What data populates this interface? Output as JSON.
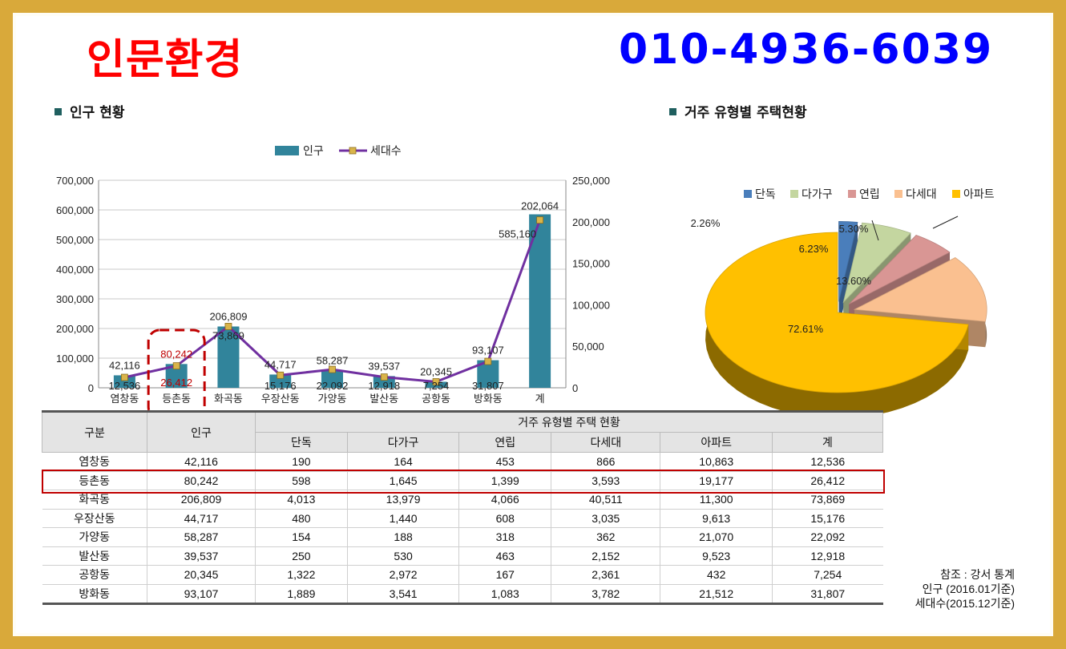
{
  "header": {
    "title": "인문환경",
    "phone": "010-4936-6039"
  },
  "left_section_title": "인구 현황",
  "right_section_title": "거주 유형별 주택현황",
  "chart_data": [
    {
      "type": "bar+line",
      "categories": [
        "염창동",
        "등촌동",
        "화곡동",
        "우장산동",
        "가양동",
        "발산동",
        "공항동",
        "방화동",
        "계"
      ],
      "series": [
        {
          "name": "인구",
          "kind": "bar",
          "axis": "left",
          "values": [
            42116,
            80242,
            206809,
            44717,
            58287,
            39537,
            20345,
            93107,
            585160
          ],
          "labels": [
            "42,116",
            "80,242",
            "206,809",
            "44,717",
            "58,287",
            "39,537",
            "20,345",
            "93,107",
            "585,160"
          ]
        },
        {
          "name": "세대수",
          "kind": "line",
          "axis": "right",
          "values": [
            12536,
            26412,
            73869,
            15176,
            22092,
            12918,
            7254,
            31807,
            202064
          ],
          "labels": [
            "12,536",
            "26,412",
            "73,869",
            "15,176",
            "22,092",
            "12,918",
            "7,254",
            "31,807",
            "202,064"
          ]
        }
      ],
      "left_ticks": [
        "0",
        "100,000",
        "200,000",
        "300,000",
        "400,000",
        "500,000",
        "600,000",
        "700,000"
      ],
      "right_ticks": [
        "0",
        "50,000",
        "100,000",
        "150,000",
        "200,000",
        "250,000"
      ],
      "ylim_left": [
        0,
        700000
      ],
      "ylim_right": [
        0,
        250000
      ],
      "highlight_category": "등촌동",
      "legend_position": "top"
    },
    {
      "type": "pie",
      "style": "3d-exploded",
      "labels": [
        "단독",
        "다가구",
        "연립",
        "다세대",
        "아파트"
      ],
      "values": [
        2.26,
        6.23,
        5.3,
        13.6,
        72.61
      ],
      "value_labels": [
        "2.26%",
        "6.23%",
        "5.30%",
        "13.60%",
        "72.61%"
      ],
      "colors": [
        "#4a7ebb",
        "#c4d6a0",
        "#d99694",
        "#fac090",
        "#ffc000"
      ],
      "legend_position": "top"
    }
  ],
  "table": {
    "group_header": "거주 유형별 주택 현황",
    "col_gubun": "구분",
    "col_pop": "인구",
    "sub_headers": [
      "단독",
      "다가구",
      "연립",
      "다세대",
      "아파트",
      "계"
    ],
    "rows": [
      [
        "염창동",
        "42,116",
        "190",
        "164",
        "453",
        "866",
        "10,863",
        "12,536"
      ],
      [
        "등촌동",
        "80,242",
        "598",
        "1,645",
        "1,399",
        "3,593",
        "19,177",
        "26,412"
      ],
      [
        "화곡동",
        "206,809",
        "4,013",
        "13,979",
        "4,066",
        "40,511",
        "11,300",
        "73,869"
      ],
      [
        "우장산동",
        "44,717",
        "480",
        "1,440",
        "608",
        "3,035",
        "9,613",
        "15,176"
      ],
      [
        "가양동",
        "58,287",
        "154",
        "188",
        "318",
        "362",
        "21,070",
        "22,092"
      ],
      [
        "발산동",
        "39,537",
        "250",
        "530",
        "463",
        "2,152",
        "9,523",
        "12,918"
      ],
      [
        "공항동",
        "20,345",
        "1,322",
        "2,972",
        "167",
        "2,361",
        "432",
        "7,254"
      ],
      [
        "방화동",
        "93,107",
        "1,889",
        "3,541",
        "1,083",
        "3,782",
        "21,512",
        "31,807"
      ]
    ],
    "highlight_row": 1
  },
  "notes": [
    "참조 : 강서 통계",
    "인구 (2016.01기준)",
    "세대수(2015.12기준)"
  ],
  "colors": {
    "bar": "#31849b",
    "line": "#7030a0",
    "marker": "#d9b44a",
    "highlight": "#c00000",
    "title": "#ff0000",
    "phone": "#0000ff",
    "frame": "#d9a93a"
  }
}
